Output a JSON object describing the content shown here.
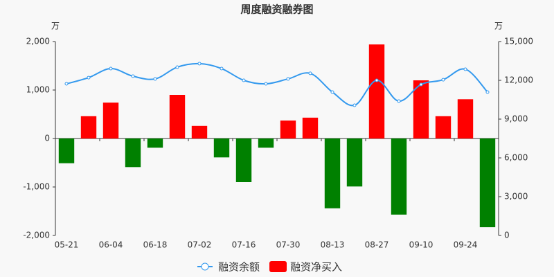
{
  "chart_data": {
    "type": "combo",
    "title": "周度融资融券图",
    "y_unit": "万",
    "y2_unit": "万",
    "categories": [
      "05-21",
      null,
      "06-04",
      null,
      "06-18",
      null,
      "07-02",
      null,
      "07-16",
      null,
      "07-30",
      null,
      "08-13",
      null,
      "08-27",
      null,
      "09-10",
      null,
      "09-24",
      null
    ],
    "series": [
      {
        "name": "融资余额",
        "type": "line",
        "axis": "y2",
        "color": "#3399ee",
        "values": [
          11730,
          12210,
          12910,
          12320,
          12110,
          13020,
          13290,
          12910,
          12000,
          11730,
          12110,
          12540,
          11090,
          10070,
          12000,
          10390,
          11680,
          12050,
          12860,
          11090
        ]
      },
      {
        "name": "融资净买入",
        "type": "bar",
        "color": "#ff0000",
        "negative_color": "#008000",
        "values": [
          -510,
          460,
          740,
          -590,
          -190,
          900,
          260,
          -390,
          -900,
          -190,
          370,
          430,
          -1440,
          -990,
          1940,
          -1570,
          1200,
          460,
          810,
          -1830
        ]
      }
    ],
    "ylim": [
      -2000,
      2000
    ],
    "yticks": [
      {
        "value": -2000,
        "label": "-2,000"
      },
      {
        "value": -1000,
        "label": "-1,000"
      },
      0,
      {
        "value": 1000,
        "label": "1,000"
      },
      {
        "value": 2000,
        "label": "2,000"
      }
    ],
    "y2lim": [
      0,
      15000
    ],
    "y2ticks": [
      0,
      {
        "value": 3000,
        "label": "3,000"
      },
      {
        "value": 6000,
        "label": "6,000"
      },
      {
        "value": 9000,
        "label": "9,000"
      },
      {
        "value": 12000,
        "label": "12,000"
      },
      {
        "value": 15000,
        "label": "15,000"
      }
    ]
  }
}
